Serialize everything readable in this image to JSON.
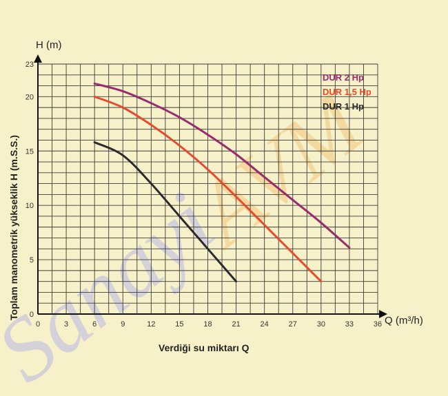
{
  "chart_data": {
    "type": "line",
    "xlabel": "Verdiği su miktarı Q",
    "x_unit": "Q (m³/h)",
    "ylabel": "Toplam manometrik yükseklik H (m.S.S.)",
    "y_unit": "H (m)",
    "xlim": [
      0,
      36
    ],
    "ylim": [
      0,
      23
    ],
    "x_ticks": [
      0,
      3,
      6,
      9,
      12,
      15,
      18,
      21,
      24,
      27,
      30,
      33,
      36
    ],
    "y_ticks": [
      0,
      5,
      10,
      15,
      20,
      23
    ],
    "grid": true,
    "legend_position": "top-right",
    "series": [
      {
        "name": "DUR 2 Hp",
        "color": "#9a2a6e",
        "x": [
          6,
          9,
          12,
          15,
          18,
          21,
          24,
          27,
          30,
          33
        ],
        "y": [
          21.2,
          20.5,
          19.4,
          18.1,
          16.5,
          14.7,
          12.6,
          10.5,
          8.4,
          6.1
        ]
      },
      {
        "name": "DUR 1,5 Hp",
        "color": "#e64a2e",
        "x": [
          6,
          9,
          12,
          15,
          18,
          21,
          24,
          27,
          30
        ],
        "y": [
          20.0,
          19.0,
          17.4,
          15.5,
          13.3,
          10.8,
          8.2,
          5.6,
          3.0
        ]
      },
      {
        "name": "DUR 1 Hp",
        "color": "#2a2a2e",
        "x": [
          6,
          9,
          12,
          15,
          18,
          21
        ],
        "y": [
          15.8,
          14.6,
          12.0,
          9.0,
          6.0,
          3.0
        ]
      }
    ]
  }
}
